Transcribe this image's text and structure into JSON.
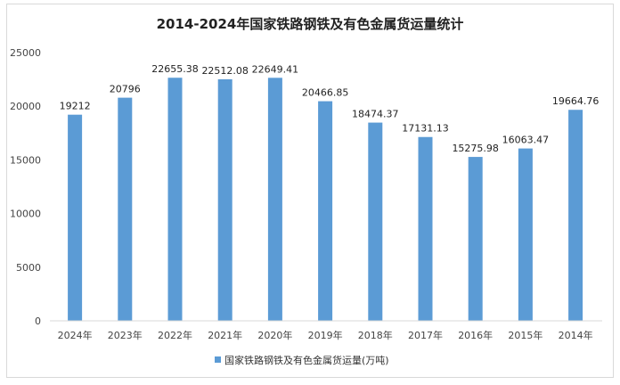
{
  "chart_data": {
    "type": "bar",
    "title": "2014-2024年国家铁路钢铁及有色金属货运量统计",
    "categories": [
      "2024年",
      "2023年",
      "2022年",
      "2021年",
      "2020年",
      "2019年",
      "2018年",
      "2017年",
      "2016年",
      "2015年",
      "2014年"
    ],
    "series": [
      {
        "name": "国家铁路钢铁及有色金属货运量(万吨)",
        "values": [
          19212,
          20796,
          22655.38,
          22512.08,
          22649.41,
          20466.85,
          18474.37,
          17131.13,
          15275.98,
          16063.47,
          19664.76
        ],
        "labels": [
          "19212",
          "20796",
          "22655.38",
          "22512.08",
          "22649.41",
          "20466.85",
          "18474.37",
          "17131.13",
          "15275.98",
          "16063.47",
          "19664.76"
        ]
      }
    ],
    "ylim": [
      0,
      25000
    ],
    "yticks": [
      "0",
      "5000",
      "10000",
      "15000",
      "20000",
      "25000"
    ],
    "xlabel": "",
    "ylabel": "",
    "grid": false,
    "legend": "bottom",
    "color": "#5b9bd5"
  }
}
